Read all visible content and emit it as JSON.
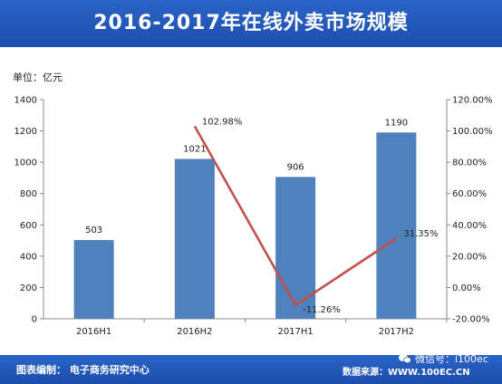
{
  "header": {
    "title": "2016-2017年在线外卖市场规模"
  },
  "unit_label": "单位：亿元",
  "footer": {
    "left": "图表编制：  电子商务研究中心",
    "right": "数据来源：WWW.100EC.CN",
    "wechat": "微信号：i100ec"
  },
  "colors": {
    "bar": "#4f81bd",
    "line": "#c0504d",
    "banner": "#1f55b8"
  },
  "chart_data": {
    "type": "bar",
    "categories": [
      "2016H1",
      "2016H2",
      "2017H1",
      "2017H2"
    ],
    "series": [
      {
        "type": "bar",
        "axis": "left",
        "values": [
          503,
          1021,
          906,
          1190
        ]
      },
      {
        "type": "line",
        "axis": "right",
        "values": [
          null,
          102.98,
          -11.26,
          31.35
        ],
        "labels": [
          "",
          "102.98%",
          "-11.26%",
          "31.35%"
        ]
      }
    ],
    "ylim": [
      0,
      1400
    ],
    "yticks": [
      0,
      200,
      400,
      600,
      800,
      1000,
      1200,
      1400
    ],
    "y2lim": [
      -20,
      120
    ],
    "y2ticks": [
      "-20.00%",
      "0.00%",
      "20.00%",
      "40.00%",
      "60.00%",
      "80.00%",
      "100.00%",
      "120.00%"
    ],
    "y2tick_values": [
      -20,
      0,
      20,
      40,
      60,
      80,
      100,
      120
    ],
    "grid": false
  }
}
